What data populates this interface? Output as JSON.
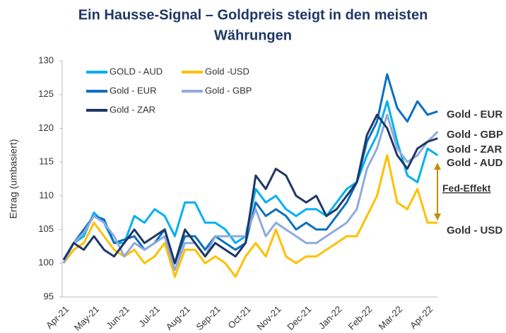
{
  "chart_data": {
    "type": "line",
    "title": "Ein Hausse-Signal – Goldpreis steigt in den meisten",
    "subtitle": "Währungen",
    "y_label": "Ertrag (umbasiert)",
    "categories": [
      "Apr-21",
      null,
      null,
      "May-21",
      null,
      null,
      "Jun-21",
      null,
      null,
      "Jul-21",
      null,
      null,
      "Aug-21",
      null,
      null,
      "Sep-21",
      null,
      null,
      "Oct-21",
      null,
      null,
      "Nov-21",
      null,
      null,
      "Dec-21",
      null,
      null,
      "Jan-22",
      null,
      null,
      "Feb-22",
      null,
      null,
      "Mar-22",
      null,
      null,
      "Apr-22",
      null
    ],
    "ylim": [
      95,
      130
    ],
    "yticks": [
      95,
      100,
      105,
      110,
      115,
      120,
      125,
      130
    ],
    "grid": false,
    "series": [
      {
        "name": "GOLD - AUD",
        "color": "#00b0f0",
        "values": [
          100,
          103,
          104,
          107.5,
          106,
          103,
          103,
          107,
          106,
          108,
          107,
          104,
          109,
          109,
          106,
          106,
          105,
          103,
          104,
          111,
          109,
          110,
          108,
          107,
          108,
          108,
          107,
          109,
          111,
          112,
          116,
          119,
          124,
          118,
          113,
          112,
          117,
          116
        ]
      },
      {
        "name": "Gold -USD",
        "color": "#ffc000",
        "values": [
          100,
          102,
          103,
          106,
          104,
          102,
          101,
          102,
          100,
          101,
          103,
          98,
          102,
          102,
          100,
          101,
          100,
          98,
          101,
          103,
          101,
          105,
          101,
          100,
          101,
          101,
          102,
          103,
          104,
          104,
          107,
          110,
          116,
          109,
          108,
          111,
          106,
          106
        ]
      },
      {
        "name": "Gold - EUR",
        "color": "#0b6fc0",
        "values": [
          100.5,
          103,
          105,
          107,
          106.5,
          103,
          103.5,
          104,
          102,
          103,
          105,
          100,
          104,
          104,
          102,
          104,
          103,
          102,
          103,
          109,
          107,
          108,
          107,
          105,
          106,
          105,
          105,
          107,
          109,
          112,
          118,
          121,
          128,
          123,
          121,
          124,
          122,
          122.5
        ]
      },
      {
        "name": "Gold - GBP",
        "color": "#8faadc",
        "values": [
          100,
          103,
          104.5,
          107,
          106,
          104,
          101,
          103,
          102,
          103,
          104,
          99,
          103,
          103,
          101,
          104,
          104,
          104,
          104,
          108,
          104,
          106,
          105,
          104,
          103,
          103,
          104,
          105,
          106,
          108,
          114,
          117,
          122,
          117,
          115,
          116,
          118,
          119.5
        ]
      },
      {
        "name": "Gold - ZAR",
        "color": "#1f3864",
        "values": [
          100.5,
          103,
          102,
          104,
          102,
          101,
          103,
          105,
          103,
          104,
          105,
          100,
          105,
          103,
          101,
          103,
          102,
          101,
          103,
          113,
          111,
          114,
          113,
          110,
          109,
          110,
          107,
          108,
          110,
          112,
          119,
          122,
          120,
          116,
          114,
          117,
          118,
          118.5
        ]
      }
    ],
    "annotations": [
      {
        "text": "Gold - EUR",
        "color": "#8faadc",
        "y": 122
      },
      {
        "text": "Gold - GBP",
        "color": "#8faadc",
        "y": 119
      },
      {
        "text": "Gold -  ZAR",
        "color": "#1f3864",
        "y": 116.8
      },
      {
        "text": "Gold - AUD",
        "color": "#00b0f0",
        "y": 114.8
      },
      {
        "text": "Fed-Effekt",
        "color": "#bf9000",
        "y": 111
      },
      {
        "text": "Gold - USD",
        "color": "#ffc000",
        "y": 104.8
      }
    ]
  }
}
